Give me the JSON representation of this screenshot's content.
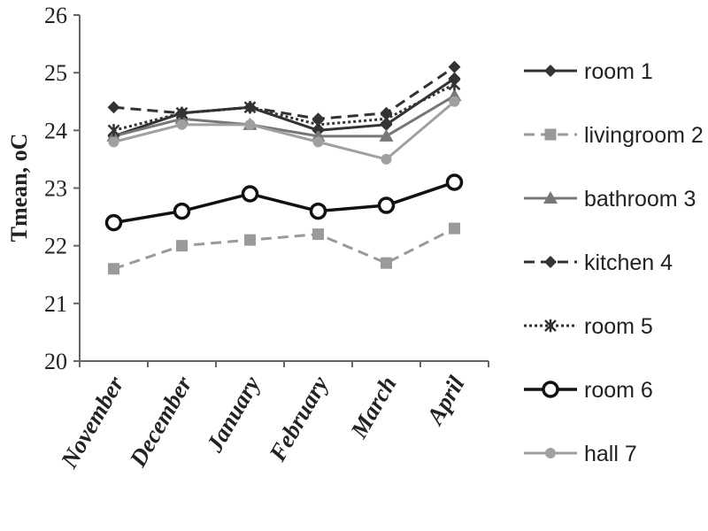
{
  "chart_data": {
    "type": "line",
    "title": "",
    "xlabel": "",
    "ylabel": "Tmean, oC",
    "ylim": [
      20,
      26
    ],
    "yticks": [
      20,
      21,
      22,
      23,
      24,
      25,
      26
    ],
    "categories": [
      "November",
      "December",
      "January",
      "February",
      "March",
      "April"
    ],
    "grid": false,
    "legend": "right",
    "series": [
      {
        "name": "room 1",
        "color": "#333333",
        "dash": "solid",
        "marker": "diamond",
        "values": [
          23.9,
          24.3,
          24.4,
          24.0,
          24.1,
          24.9
        ]
      },
      {
        "name": "livingroom 2",
        "color": "#9a9a9a",
        "dash": "dashed",
        "marker": "square",
        "values": [
          21.6,
          22.0,
          22.1,
          22.2,
          21.7,
          22.3
        ]
      },
      {
        "name": "bathroom 3",
        "color": "#777777",
        "dash": "solid",
        "marker": "triangle",
        "values": [
          23.9,
          24.2,
          24.1,
          23.9,
          23.9,
          24.6
        ]
      },
      {
        "name": "kitchen 4",
        "color": "#333333",
        "dash": "dashed",
        "marker": "diamond",
        "values": [
          24.4,
          24.3,
          24.4,
          24.2,
          24.3,
          25.1
        ]
      },
      {
        "name": "room 5",
        "color": "#333333",
        "dash": "dotted",
        "marker": "star",
        "values": [
          24.0,
          24.3,
          24.4,
          24.1,
          24.2,
          24.8
        ]
      },
      {
        "name": "room 6",
        "color": "#111111",
        "dash": "solid",
        "marker": "circle",
        "values": [
          22.4,
          22.6,
          22.9,
          22.6,
          22.7,
          23.1
        ]
      },
      {
        "name": "hall 7",
        "color": "#a0a0a0",
        "dash": "solid",
        "marker": "dot",
        "values": [
          23.8,
          24.1,
          24.1,
          23.8,
          23.5,
          24.5
        ]
      }
    ]
  }
}
